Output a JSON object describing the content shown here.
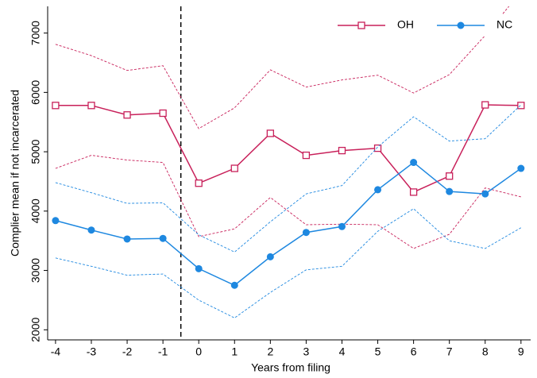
{
  "chart_data": {
    "type": "line",
    "xlabel": "Years from filing",
    "ylabel": "Complier mean if not incarcerated",
    "x": [
      -4,
      -3,
      -2,
      -1,
      0,
      1,
      2,
      3,
      4,
      5,
      6,
      7,
      8,
      9
    ],
    "xlim": [
      -4.22,
      9.27
    ],
    "xticks": [
      -4,
      -3,
      -2,
      -1,
      0,
      1,
      2,
      3,
      4,
      5,
      6,
      7,
      8,
      9
    ],
    "ylim": [
      1830,
      7450
    ],
    "yticks": [
      2000,
      3000,
      4000,
      5000,
      6000,
      7000
    ],
    "vline": -0.5,
    "legend": "top-right",
    "series": [
      {
        "name": "OH",
        "color": "#c8205a",
        "marker": "square-open",
        "values": [
          5780,
          5780,
          5620,
          5650,
          4470,
          4720,
          5310,
          4940,
          5020,
          5060,
          4320,
          4590,
          5790,
          5780
        ],
        "upper": [
          6810,
          6620,
          6370,
          6450,
          5390,
          5740,
          6380,
          6090,
          6210,
          6290,
          5990,
          6300,
          6960,
          7700
        ],
        "lower": [
          4720,
          4940,
          4860,
          4820,
          3570,
          3700,
          4230,
          3770,
          3780,
          3770,
          3370,
          3610,
          4390,
          4240
        ]
      },
      {
        "name": "NC",
        "color": "#1e88e0",
        "marker": "circle",
        "values": [
          3840,
          3680,
          3530,
          3540,
          3030,
          2750,
          3230,
          3640,
          3740,
          4360,
          4820,
          4330,
          4290,
          4720
        ],
        "upper": [
          4480,
          4310,
          4130,
          4140,
          3600,
          3310,
          3820,
          4290,
          4430,
          5080,
          5590,
          5180,
          5220,
          5790
        ],
        "lower": [
          3210,
          3070,
          2920,
          2940,
          2500,
          2200,
          2630,
          3010,
          3070,
          3660,
          4040,
          3500,
          3370,
          3720
        ]
      }
    ]
  }
}
